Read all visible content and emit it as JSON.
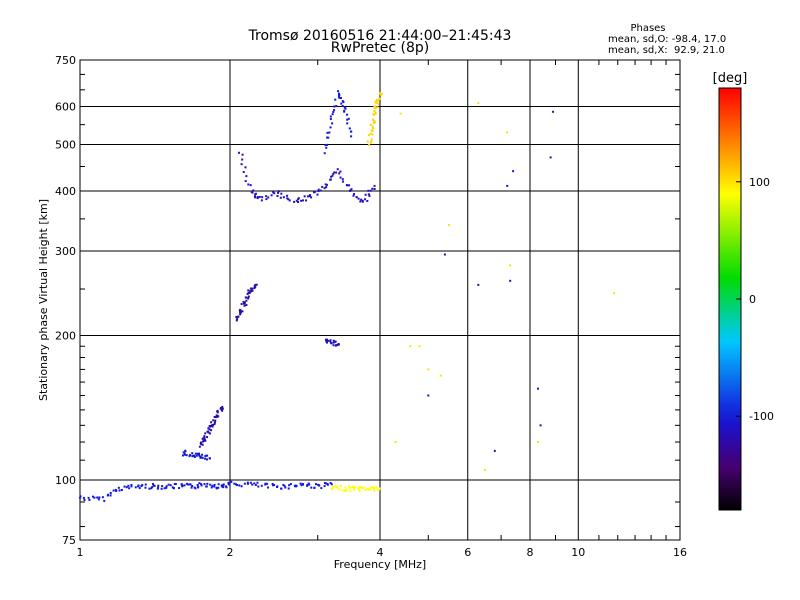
{
  "chart_data": {
    "type": "scatter",
    "title": "Tromsø 20160516 21:44:00–21:45:43",
    "subtitle": "RwPretec (8p)",
    "xlabel": "Frequency [MHz]",
    "ylabel": "Stationary phase Virtual Height [km]",
    "x_scale": "log",
    "y_scale": "log",
    "xlim": [
      1,
      16
    ],
    "ylim": [
      75,
      750
    ],
    "x_ticks": [
      1,
      2,
      4,
      6,
      8,
      10,
      16
    ],
    "x_tick_labels": [
      "1",
      "2",
      "4",
      "6",
      "8",
      "10",
      "16"
    ],
    "x_minor_ticks": [
      3,
      5,
      7,
      9,
      11,
      12,
      13,
      14,
      15
    ],
    "y_ticks": [
      75,
      100,
      200,
      300,
      400,
      500,
      600,
      750
    ],
    "y_tick_labels": [
      "75",
      "100",
      "200",
      "300",
      "400",
      "500",
      "600",
      "750"
    ],
    "y_minor_ticks": [
      80,
      90,
      110,
      120,
      130,
      140,
      150,
      160,
      170,
      180,
      190,
      250,
      350,
      450,
      550,
      650,
      700
    ],
    "grid": true,
    "phase_legend": {
      "title": "Phases",
      "line_o": "mean, sd,O: -98.4, 17.0",
      "line_x": "mean, sd,X:  92.9, 21.0"
    },
    "colorbar": {
      "label": "[deg]",
      "range": [
        -180,
        180
      ],
      "ticks": [
        100,
        0,
        -100
      ],
      "tick_labels": [
        "100",
        "0",
        "-100"
      ]
    },
    "series": [
      {
        "type": "line",
        "phase": -100,
        "x": [
          1.0,
          1.1,
          1.2,
          1.3,
          1.4,
          1.5,
          1.6,
          1.7,
          1.8,
          1.9,
          2.0,
          2.2,
          2.4,
          2.6,
          2.8,
          3.0,
          3.2
        ],
        "y": [
          92,
          91,
          96,
          97,
          97,
          97,
          97,
          97,
          98,
          97,
          98,
          98,
          97,
          97,
          98,
          97,
          98
        ]
      },
      {
        "type": "line",
        "phase": 90,
        "x": [
          3.2,
          3.4,
          3.6,
          3.8,
          4.0
        ],
        "y": [
          96,
          96,
          96,
          96,
          96
        ]
      },
      {
        "type": "line",
        "phase": -110,
        "x": [
          2.1,
          2.2,
          2.3,
          2.5,
          2.7,
          2.9,
          3.1,
          3.3,
          3.5,
          3.7,
          3.9
        ],
        "y": [
          480,
          400,
          385,
          395,
          380,
          390,
          410,
          440,
          400,
          380,
          410
        ]
      },
      {
        "type": "line",
        "phase": -100,
        "x": [
          3.1,
          3.2,
          3.3,
          3.4,
          3.5
        ],
        "y": [
          480,
          560,
          640,
          600,
          520
        ]
      },
      {
        "type": "line",
        "phase": -120,
        "x": [
          2.05,
          2.1,
          2.15,
          2.2,
          2.25
        ],
        "y": [
          215,
          225,
          235,
          248,
          255
        ]
      },
      {
        "type": "line",
        "phase": -120,
        "x": [
          1.75,
          1.78,
          1.82,
          1.85,
          1.9,
          1.93
        ],
        "y": [
          118,
          122,
          128,
          132,
          138,
          142
        ]
      },
      {
        "type": "line",
        "phase": -100,
        "x": [
          1.6,
          1.68,
          1.75,
          1.82
        ],
        "y": [
          114,
          113,
          112,
          111
        ]
      },
      {
        "type": "line",
        "phase": 105,
        "x": [
          3.8,
          3.85,
          3.9,
          3.95,
          4.0
        ],
        "y": [
          500,
          540,
          580,
          610,
          640
        ]
      },
      {
        "type": "line",
        "phase": -110,
        "x": [
          3.1,
          3.2,
          3.3
        ],
        "y": [
          195,
          193,
          192
        ]
      },
      {
        "type": "scatter",
        "phase": 100,
        "x": [
          4.3,
          4.4,
          4.6,
          4.8,
          5.0,
          5.3,
          5.5,
          6.3,
          7.2,
          7.3,
          8.3,
          6.5,
          11.8
        ],
        "y": [
          120,
          580,
          190,
          190,
          170,
          165,
          340,
          610,
          530,
          280,
          120,
          105,
          245
        ]
      },
      {
        "type": "scatter",
        "phase": -110,
        "x": [
          5.0,
          5.4,
          6.3,
          7.2,
          7.4,
          8.3,
          8.4,
          8.8,
          6.8,
          7.3,
          8.9
        ],
        "y": [
          150,
          295,
          255,
          410,
          440,
          155,
          130,
          470,
          115,
          260,
          585
        ]
      }
    ]
  }
}
